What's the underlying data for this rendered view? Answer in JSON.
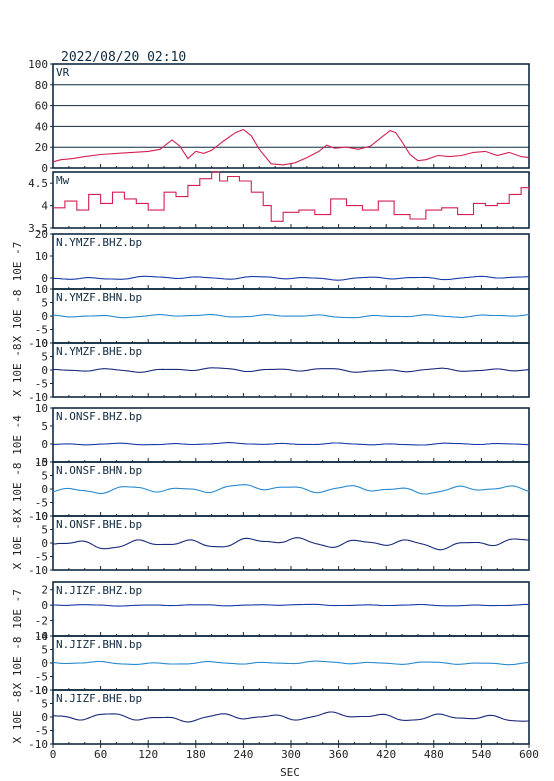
{
  "header": {
    "datetime": "2022/08/20 02:10"
  },
  "chart_data": {
    "type": "line",
    "xlabel": "SEC",
    "xlim": [
      0,
      600
    ],
    "xticks": [
      0,
      60,
      120,
      180,
      240,
      300,
      360,
      420,
      480,
      540,
      600
    ],
    "panels": [
      {
        "id": "vr",
        "label": "VR",
        "ylabel": "",
        "ylim": [
          0,
          100
        ],
        "yticks": [
          0,
          20,
          40,
          60,
          80,
          100
        ],
        "grid": true,
        "color": "#d22050",
        "x": [
          0,
          10,
          25,
          40,
          60,
          80,
          100,
          120,
          135,
          150,
          160,
          170,
          180,
          190,
          200,
          215,
          230,
          240,
          250,
          260,
          275,
          290,
          305,
          320,
          335,
          345,
          355,
          370,
          385,
          400,
          415,
          425,
          432,
          440,
          450,
          460,
          470,
          485,
          500,
          515,
          530,
          545,
          560,
          575,
          590,
          600
        ],
        "y": [
          6,
          8,
          9,
          11,
          13,
          14,
          15,
          16,
          18,
          27,
          21,
          9,
          16,
          14,
          17,
          26,
          34,
          37,
          31,
          18,
          4,
          3,
          5,
          10,
          16,
          22,
          19,
          20,
          18,
          21,
          30,
          36,
          34,
          25,
          13,
          7,
          8,
          12,
          11,
          12,
          15,
          16,
          12,
          15,
          11,
          10
        ]
      },
      {
        "id": "mw",
        "label": "Mw",
        "ylabel": "",
        "ylim": [
          3.5,
          4.75
        ],
        "yticks": [
          3.5,
          4.0,
          4.5
        ],
        "grid": false,
        "color": "#d22050",
        "x": [
          0,
          15,
          30,
          45,
          60,
          75,
          90,
          105,
          120,
          140,
          155,
          170,
          185,
          200,
          210,
          220,
          235,
          250,
          265,
          275,
          290,
          310,
          330,
          350,
          370,
          390,
          410,
          430,
          450,
          470,
          490,
          510,
          530,
          545,
          560,
          575,
          590,
          600
        ],
        "y": [
          3.95,
          4.1,
          3.9,
          4.25,
          4.05,
          4.3,
          4.15,
          4.05,
          3.9,
          4.3,
          4.2,
          4.45,
          4.6,
          4.75,
          4.55,
          4.65,
          4.55,
          4.3,
          4.0,
          3.65,
          3.85,
          3.9,
          3.8,
          4.15,
          4.0,
          3.9,
          4.1,
          3.8,
          3.7,
          3.9,
          3.95,
          3.8,
          4.05,
          4.0,
          4.05,
          4.25,
          4.4,
          4.35
        ]
      },
      {
        "id": "ymzf-bhz",
        "label": "N.YMZF.BHZ.bp",
        "ylabel": "10E -7",
        "ylim": [
          -5,
          20
        ],
        "yticks": [
          0,
          10,
          20
        ],
        "color": "#1a3aa8",
        "amp": 0.8,
        "seed": 1
      },
      {
        "id": "ymzf-bhn",
        "label": "N.YMZF.BHN.bp",
        "ylabel": "X 10E -8",
        "ylim": [
          -10,
          10
        ],
        "yticks": [
          -10,
          -5,
          0,
          5,
          10
        ],
        "color": "#2a8ad0",
        "amp": 0.6,
        "seed": 2
      },
      {
        "id": "ymzf-bhe",
        "label": "N.YMZF.BHE.bp",
        "ylabel": "X 10E -8",
        "ylim": [
          -10,
          10
        ],
        "yticks": [
          -10,
          -5,
          0,
          5,
          10
        ],
        "color": "#1a2a7a",
        "amp": 0.8,
        "seed": 3
      },
      {
        "id": "onsf-bhz",
        "label": "N.ONSF.BHZ.bp",
        "ylabel": "10E -4",
        "ylim": [
          -5,
          10
        ],
        "yticks": [
          -5,
          0,
          5,
          10
        ],
        "color": "#1a3aa8",
        "amp": 0.3,
        "seed": 4
      },
      {
        "id": "onsf-bhn",
        "label": "N.ONSF.BHN.bp",
        "ylabel": "X 10E -8",
        "ylim": [
          -10,
          10
        ],
        "yticks": [
          -10,
          -5,
          0,
          5,
          10
        ],
        "color": "#2a8ad0",
        "amp": 1.6,
        "seed": 5
      },
      {
        "id": "onsf-bhe",
        "label": "N.ONSF.BHE.bp",
        "ylabel": "X 10E -8",
        "ylim": [
          -10,
          10
        ],
        "yticks": [
          -10,
          -5,
          0,
          5,
          10
        ],
        "color": "#1a2a7a",
        "amp": 2.0,
        "seed": 6
      },
      {
        "id": "jizf-bhz",
        "label": "N.JIZF.BHZ.bp",
        "ylabel": "10E -7",
        "ylim": [
          -4,
          3
        ],
        "yticks": [
          -4,
          -2,
          0,
          2
        ],
        "color": "#1a3aa8",
        "amp": 0.1,
        "seed": 7
      },
      {
        "id": "jizf-bhn",
        "label": "N.JIZF.BHN.bp",
        "ylabel": "X 10E -8",
        "ylim": [
          -10,
          10
        ],
        "yticks": [
          -10,
          -5,
          0,
          5,
          10
        ],
        "color": "#2a8ad0",
        "amp": 0.6,
        "seed": 8
      },
      {
        "id": "jizf-bhe",
        "label": "N.JIZF.BHE.bp",
        "ylabel": "X 10E -8",
        "ylim": [
          -10,
          10
        ],
        "yticks": [
          -10,
          -5,
          0,
          5,
          10
        ],
        "color": "#1a2a7a",
        "amp": 1.6,
        "seed": 9
      }
    ]
  }
}
